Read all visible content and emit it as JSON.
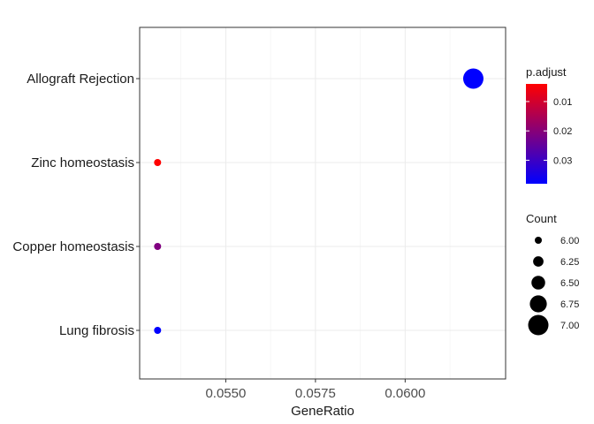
{
  "chart_data": {
    "type": "scatter",
    "title": "",
    "xlabel": "GeneRatio",
    "ylabel": "",
    "xlim": [
      0.0526,
      0.0628
    ],
    "x_ticks": [
      0.055,
      0.0575,
      0.06
    ],
    "x_tick_labels": [
      "0.0550",
      "0.0575",
      "0.0600"
    ],
    "categories": [
      "Allograft Rejection",
      "Zinc homeostasis",
      "Copper homeostasis",
      "Lung fibrosis"
    ],
    "grid": true,
    "legend_position": "right",
    "points": [
      {
        "term": "Allograft Rejection",
        "gene_ratio": 0.0619,
        "count": 7,
        "p_adjust": 0.038
      },
      {
        "term": "Zinc homeostasis",
        "gene_ratio": 0.0531,
        "count": 6,
        "p_adjust": 0.004
      },
      {
        "term": "Copper homeostasis",
        "gene_ratio": 0.0531,
        "count": 6,
        "p_adjust": 0.021
      },
      {
        "term": "Lung fibrosis",
        "gene_ratio": 0.0531,
        "count": 6,
        "p_adjust": 0.038
      }
    ],
    "color_legend": {
      "title": "p.adjust",
      "low_color": "#ff0000",
      "high_color": "#0000ff",
      "range": [
        0.004,
        0.038
      ],
      "ticks": [
        0.01,
        0.02,
        0.03
      ],
      "tick_labels": [
        "0.01",
        "0.02",
        "0.03"
      ]
    },
    "size_legend": {
      "title": "Count",
      "values": [
        6.0,
        6.25,
        6.5,
        6.75,
        7.0
      ],
      "labels": [
        "6.00",
        "6.25",
        "6.50",
        "6.75",
        "7.00"
      ],
      "color": "#000000"
    }
  }
}
